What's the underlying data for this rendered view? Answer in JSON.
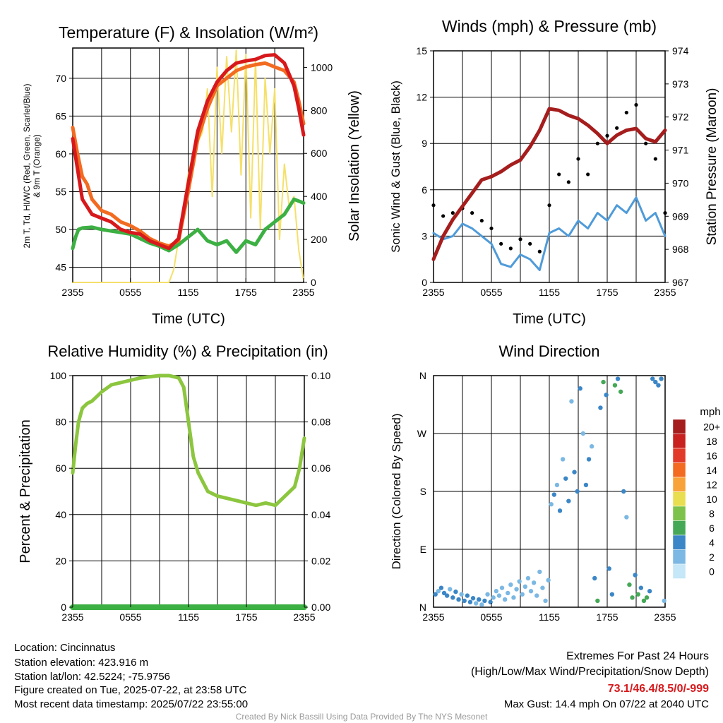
{
  "panels": {
    "temp": {
      "title": "Temperature (F) & Insolation (W/m²)",
      "xlabel": "Time (UTC)",
      "ylabel_left_line1": "2m T, Td, HI/WC (Red, Green, Scarlet/Blue)",
      "ylabel_left_line2": "& 9m T (Orange)",
      "ylabel_right": "Solar Insolation (Yellow)"
    },
    "wind": {
      "title": "Winds (mph) & Pressure (mb)",
      "xlabel": "Time (UTC)",
      "ylabel_left": "Sonic Wind & Gust (Blue, Black)",
      "ylabel_right": "Station Pressure (Maroon)"
    },
    "rh": {
      "title": "Relative Humidity (%) & Precipitation (in)",
      "ylabel_left": "Percent & Precipitation"
    },
    "dir": {
      "title": "Wind Direction",
      "ylabel_left": "Direction (Colored By Speed)",
      "legend_title": "mph"
    }
  },
  "info": {
    "location": "Location: Cincinnatus",
    "elevation": "Station elevation: 423.916 m",
    "latlon": "Station lat/lon: 42.5224; -75.9756",
    "created": "Figure created on Tue, 2025-07-22, at 23:58 UTC",
    "recent": "Most recent data timestamp: 2025/07/22 23:55:00"
  },
  "extremes": {
    "title": "Extremes For Past 24 Hours",
    "subtitle": "(High/Low/Max Wind/Precipitation/Snow Depth)",
    "values": "73.1/46.4/8.5/0/-999",
    "max_gust": "Max Gust: 14.4 mph On 07/22 at 2040 UTC"
  },
  "credit": "Created By Nick Bassill Using Data Provided By The NYS Mesonet",
  "colors": {
    "temp": "#d7191c",
    "dew": "#3cb043",
    "ninem": "#f26b21",
    "solar": "#f5e06a",
    "wind": "#4f9bd9",
    "gust": "#000000",
    "pressure": "#a51d1d",
    "rh": "#8cc63f",
    "precip": "#3cb043"
  },
  "chart_data": [
    {
      "id": "temp",
      "type": "line",
      "x_ticks": [
        "2355",
        "0555",
        "1155",
        "1755",
        "2355"
      ],
      "x_range_hours": [
        0,
        24
      ],
      "ylim_left": [
        43,
        74
      ],
      "yticks_left": [
        45,
        50,
        55,
        60,
        65,
        70
      ],
      "ylim_right": [
        0,
        1090
      ],
      "yticks_right": [
        0,
        200,
        400,
        600,
        800,
        1000
      ],
      "series": [
        {
          "name": "2m T (Red)",
          "color": "#d7191c",
          "x": [
            0,
            0.5,
            1,
            2,
            3,
            4,
            5,
            6,
            7,
            8,
            9,
            10,
            11,
            12,
            13,
            14,
            15,
            16,
            17,
            18,
            19,
            20,
            21,
            22,
            23,
            23.5,
            24
          ],
          "y": [
            62,
            58,
            54,
            52,
            51.5,
            51,
            50,
            49.6,
            49.4,
            48.5,
            48,
            47.5,
            48.8,
            56,
            63,
            67,
            69.5,
            71,
            72,
            72.3,
            72.5,
            73,
            73.1,
            72,
            69,
            66,
            62.5
          ]
        },
        {
          "name": "9m T (Orange)",
          "color": "#f26b21",
          "x": [
            0,
            0.5,
            1,
            1.5,
            2,
            3,
            4,
            5,
            6,
            7,
            8,
            9,
            10,
            11,
            12,
            13,
            14,
            15,
            16,
            17,
            18,
            19,
            20,
            21,
            22,
            23,
            23.5,
            24
          ],
          "y": [
            63.5,
            60,
            57,
            56,
            54,
            52.5,
            52,
            51,
            50.5,
            49.8,
            48.8,
            48.2,
            47.8,
            48.5,
            55,
            62,
            66,
            69,
            70,
            71,
            71.5,
            71.8,
            72,
            71.5,
            71,
            69.5,
            67,
            64
          ]
        },
        {
          "name": "Td (Green)",
          "color": "#3cb043",
          "x": [
            0,
            0.3,
            0.6,
            1,
            2,
            3,
            4,
            5,
            6,
            7,
            8,
            9,
            10,
            11,
            12,
            13,
            14,
            15,
            16,
            17,
            18,
            19,
            20,
            21,
            22,
            23,
            24
          ],
          "y": [
            47.5,
            49,
            50,
            50.2,
            50.3,
            50,
            49.8,
            49.6,
            49.4,
            48.8,
            48.2,
            47.8,
            47.2,
            48,
            49,
            50,
            48.5,
            48,
            48.5,
            47,
            48.5,
            48,
            50,
            51,
            52,
            54,
            53.5
          ]
        },
        {
          "name": "Solar Insolation (Yellow)",
          "axis": "right",
          "color": "#f5e06a",
          "x": [
            0,
            3,
            6,
            9,
            10,
            10.5,
            11,
            11.5,
            12,
            12.5,
            13,
            13.5,
            14,
            14.5,
            15,
            15.5,
            16,
            16.5,
            17,
            17.5,
            18,
            18.5,
            19,
            19.5,
            20,
            20.5,
            21,
            21.5,
            22,
            22.5,
            23,
            23.5,
            24
          ],
          "y": [
            0,
            0,
            0,
            0,
            0,
            60,
            200,
            350,
            500,
            600,
            650,
            700,
            900,
            400,
            1000,
            600,
            1050,
            700,
            1080,
            500,
            1060,
            300,
            1040,
            250,
            950,
            600,
            900,
            200,
            550,
            350,
            400,
            150,
            10
          ]
        }
      ]
    },
    {
      "id": "wind",
      "type": "line",
      "x_ticks": [
        "2355",
        "0555",
        "1155",
        "1755",
        "2355"
      ],
      "ylim_left": [
        0,
        15
      ],
      "yticks_left": [
        0,
        3,
        6,
        9,
        12,
        15
      ],
      "ylim_right": [
        967,
        974
      ],
      "yticks_right": [
        967,
        968,
        969,
        970,
        971,
        972,
        973,
        974
      ],
      "series": [
        {
          "name": "Sonic Wind (Blue)",
          "color": "#4f9bd9",
          "x": [
            0,
            1,
            2,
            3,
            4,
            5,
            6,
            7,
            8,
            9,
            10,
            11,
            12,
            13,
            14,
            15,
            16,
            17,
            18,
            19,
            20,
            21,
            22,
            23,
            24
          ],
          "y": [
            3.2,
            2.8,
            3,
            3.8,
            3.5,
            3,
            2.5,
            1.2,
            1,
            1.8,
            1.5,
            0.8,
            3.2,
            3.5,
            3,
            4,
            3.5,
            4.5,
            4,
            5,
            4.5,
            5.5,
            4,
            4.5,
            3
          ]
        },
        {
          "name": "Gust (Black)",
          "color": "#000000",
          "x": [
            0,
            1,
            2,
            3,
            4,
            5,
            6,
            7,
            8,
            9,
            10,
            11,
            12,
            13,
            14,
            15,
            16,
            17,
            18,
            19,
            20,
            21,
            22,
            23,
            24
          ],
          "y": [
            5,
            4.3,
            4.5,
            4.8,
            4.5,
            4,
            3.5,
            2.5,
            2.2,
            2.8,
            2.5,
            2,
            5,
            7,
            6.5,
            8,
            7,
            9,
            9.5,
            10,
            11,
            11.5,
            9,
            8,
            4.5
          ]
        },
        {
          "name": "Station Pressure (Maroon)",
          "axis": "right",
          "color": "#a51d1d",
          "x": [
            0,
            1,
            2,
            3,
            4,
            5,
            6,
            7,
            8,
            9,
            10,
            11,
            12,
            13,
            14,
            15,
            16,
            17,
            18,
            19,
            20,
            21,
            22,
            23,
            24
          ],
          "y": [
            967.7,
            968.4,
            968.9,
            969.3,
            969.7,
            970.1,
            970.2,
            970.35,
            970.55,
            970.7,
            971.1,
            971.6,
            972.25,
            972.2,
            972.05,
            971.95,
            971.75,
            971.5,
            971.2,
            971.45,
            971.6,
            971.65,
            971.35,
            971.25,
            971.6
          ]
        }
      ]
    },
    {
      "id": "rh",
      "type": "line",
      "x_ticks": [
        "2355",
        "0555",
        "1155",
        "1755",
        "2355"
      ],
      "ylim_left": [
        0,
        100
      ],
      "yticks_left": [
        0,
        20,
        40,
        60,
        80,
        100
      ],
      "ylim_right": [
        0,
        0.1
      ],
      "yticks_right": [
        "0.00",
        "0.02",
        "0.04",
        "0.06",
        "0.08",
        "0.10"
      ],
      "series": [
        {
          "name": "Relative Humidity",
          "color": "#8cc63f",
          "x": [
            0,
            0.3,
            0.6,
            1,
            1.5,
            2,
            3,
            4,
            5,
            6,
            7,
            8,
            9,
            10,
            11,
            11.5,
            12,
            12.5,
            13,
            14,
            15,
            16,
            17,
            18,
            19,
            20,
            21,
            22,
            23,
            23.5,
            24
          ],
          "y": [
            58,
            70,
            80,
            86,
            88,
            89,
            93,
            96,
            97,
            98,
            99,
            99.5,
            100,
            100,
            99,
            95,
            80,
            65,
            58,
            50,
            48,
            47,
            46,
            45,
            44,
            45,
            44,
            48,
            52,
            60,
            73
          ]
        },
        {
          "name": "Precipitation",
          "axis": "right",
          "color": "#3cb043",
          "x": [
            0,
            24
          ],
          "y": [
            0,
            0
          ]
        }
      ]
    },
    {
      "id": "dir",
      "type": "scatter",
      "x_ticks": [
        "2355",
        "0555",
        "1155",
        "1755",
        "2355"
      ],
      "y_ticks": [
        "N",
        "E",
        "S",
        "W",
        "N"
      ],
      "ylim_degrees": [
        0,
        360
      ],
      "legend_levels": [
        "20+",
        "18",
        "16",
        "14",
        "12",
        "10",
        "8",
        "6",
        "4",
        "2",
        "0"
      ],
      "legend_colors": [
        "#a51d1d",
        "#c8211f",
        "#e23a2a",
        "#f26b21",
        "#f8a33a",
        "#e8de4f",
        "#7dc24a",
        "#45a856",
        "#3b86c6",
        "#7bb8e3",
        "#c5e7f7"
      ],
      "points": [
        {
          "x": 0.2,
          "y": 20,
          "s": 3
        },
        {
          "x": 0.5,
          "y": 25,
          "s": 2
        },
        {
          "x": 0.8,
          "y": 30,
          "s": 3
        },
        {
          "x": 1.1,
          "y": 22,
          "s": 4
        },
        {
          "x": 1.4,
          "y": 18,
          "s": 3
        },
        {
          "x": 1.7,
          "y": 28,
          "s": 2
        },
        {
          "x": 2,
          "y": 15,
          "s": 3
        },
        {
          "x": 2.3,
          "y": 24,
          "s": 4
        },
        {
          "x": 2.6,
          "y": 12,
          "s": 3
        },
        {
          "x": 2.9,
          "y": 20,
          "s": 2
        },
        {
          "x": 3.2,
          "y": 10,
          "s": 4
        },
        {
          "x": 3.5,
          "y": 18,
          "s": 3
        },
        {
          "x": 3.8,
          "y": 8,
          "s": 4
        },
        {
          "x": 4.1,
          "y": 14,
          "s": 3
        },
        {
          "x": 4.4,
          "y": 6,
          "s": 2
        },
        {
          "x": 4.7,
          "y": 12,
          "s": 3
        },
        {
          "x": 5,
          "y": 4,
          "s": 2
        },
        {
          "x": 5.3,
          "y": 10,
          "s": 3
        },
        {
          "x": 5.6,
          "y": 20,
          "s": 2
        },
        {
          "x": 5.9,
          "y": 8,
          "s": 3
        },
        {
          "x": 6.2,
          "y": 15,
          "s": 1
        },
        {
          "x": 6.5,
          "y": 25,
          "s": 2
        },
        {
          "x": 6.8,
          "y": 18,
          "s": 1
        },
        {
          "x": 7.1,
          "y": 30,
          "s": 2
        },
        {
          "x": 7.4,
          "y": 12,
          "s": 1
        },
        {
          "x": 7.7,
          "y": 22,
          "s": 1
        },
        {
          "x": 8,
          "y": 35,
          "s": 2
        },
        {
          "x": 8.3,
          "y": 15,
          "s": 1
        },
        {
          "x": 8.6,
          "y": 28,
          "s": 1
        },
        {
          "x": 8.9,
          "y": 40,
          "s": 2
        },
        {
          "x": 9.2,
          "y": 20,
          "s": 1
        },
        {
          "x": 9.5,
          "y": 32,
          "s": 1
        },
        {
          "x": 9.8,
          "y": 45,
          "s": 1
        },
        {
          "x": 10.1,
          "y": 25,
          "s": 2
        },
        {
          "x": 10.4,
          "y": 38,
          "s": 1
        },
        {
          "x": 10.7,
          "y": 18,
          "s": 1
        },
        {
          "x": 11,
          "y": 55,
          "s": 1
        },
        {
          "x": 11.3,
          "y": 30,
          "s": 2
        },
        {
          "x": 11.6,
          "y": 10,
          "s": 1
        },
        {
          "x": 11.9,
          "y": 42,
          "s": 1
        },
        {
          "x": 12.2,
          "y": 160,
          "s": 2
        },
        {
          "x": 12.5,
          "y": 175,
          "s": 3
        },
        {
          "x": 12.8,
          "y": 190,
          "s": 2
        },
        {
          "x": 13.1,
          "y": 150,
          "s": 3
        },
        {
          "x": 13.4,
          "y": 230,
          "s": 2
        },
        {
          "x": 13.7,
          "y": 200,
          "s": 4
        },
        {
          "x": 14,
          "y": 165,
          "s": 3
        },
        {
          "x": 14.3,
          "y": 320,
          "s": 2
        },
        {
          "x": 14.6,
          "y": 210,
          "s": 3
        },
        {
          "x": 14.9,
          "y": 180,
          "s": 4
        },
        {
          "x": 15.2,
          "y": 340,
          "s": 3
        },
        {
          "x": 15.5,
          "y": 270,
          "s": 2
        },
        {
          "x": 15.8,
          "y": 190,
          "s": 3
        },
        {
          "x": 16.1,
          "y": 230,
          "s": 3
        },
        {
          "x": 16.4,
          "y": 250,
          "s": 2
        },
        {
          "x": 16.7,
          "y": 45,
          "s": 4
        },
        {
          "x": 17,
          "y": 10,
          "s": 5
        },
        {
          "x": 17.3,
          "y": 310,
          "s": 4
        },
        {
          "x": 17.6,
          "y": 350,
          "s": 5
        },
        {
          "x": 17.9,
          "y": 330,
          "s": 4
        },
        {
          "x": 18.2,
          "y": 60,
          "s": 3
        },
        {
          "x": 18.5,
          "y": 20,
          "s": 4
        },
        {
          "x": 18.8,
          "y": 345,
          "s": 6
        },
        {
          "x": 19.1,
          "y": 355,
          "s": 4
        },
        {
          "x": 19.4,
          "y": 335,
          "s": 5
        },
        {
          "x": 19.7,
          "y": 180,
          "s": 3
        },
        {
          "x": 20,
          "y": 140,
          "s": 2
        },
        {
          "x": 20.3,
          "y": 35,
          "s": 5
        },
        {
          "x": 20.6,
          "y": 15,
          "s": 6
        },
        {
          "x": 20.9,
          "y": 50,
          "s": 4
        },
        {
          "x": 21.2,
          "y": 20,
          "s": 5
        },
        {
          "x": 21.5,
          "y": 30,
          "s": 4
        },
        {
          "x": 21.8,
          "y": 10,
          "s": 6
        },
        {
          "x": 22.1,
          "y": 15,
          "s": 5
        },
        {
          "x": 22.4,
          "y": 25,
          "s": 4
        },
        {
          "x": 22.7,
          "y": 355,
          "s": 4
        },
        {
          "x": 23,
          "y": 350,
          "s": 3
        },
        {
          "x": 23.3,
          "y": 345,
          "s": 4
        },
        {
          "x": 23.6,
          "y": 355,
          "s": 3
        },
        {
          "x": 23.9,
          "y": 10,
          "s": 2
        }
      ]
    }
  ]
}
